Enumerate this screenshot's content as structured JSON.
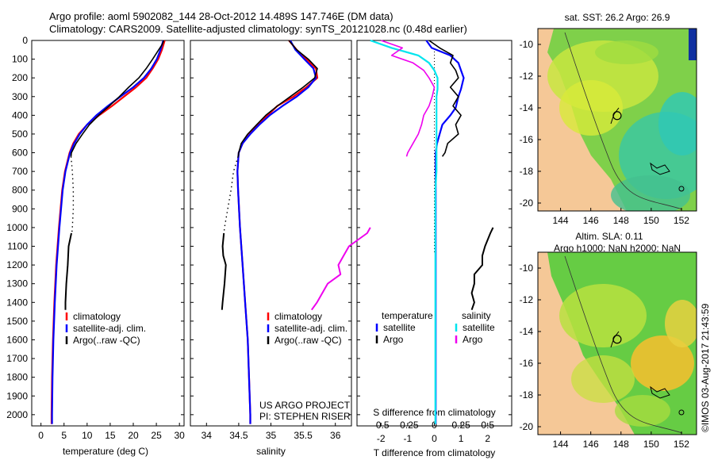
{
  "header": {
    "line1": "Argo profile: aoml 5902082_144 28-Oct-2012 14.489S 147.746E (DM data)",
    "line2": "Climatology: CARS2009. Satellite-adjusted climatology: synTS_20121028.nc (0.48d earlier)"
  },
  "colors": {
    "climatology": "#ff0000",
    "satellite": "#0000ff",
    "argo": "#000000",
    "s_satellite": "#00e5ee",
    "s_argo": "#ee00ee",
    "land": "#f5c897",
    "frame": "#000000"
  },
  "depth_ticks": [
    "0",
    "100",
    "200",
    "300",
    "400",
    "500",
    "600",
    "700",
    "800",
    "900",
    "1000",
    "1100",
    "1200",
    "1300",
    "1400",
    "1500",
    "1600",
    "1700",
    "1800",
    "1900",
    "2000"
  ],
  "chart_data": [
    {
      "type": "line",
      "name": "temperature-profile",
      "xlabel": "temperature (deg C)",
      "ylabel": "",
      "xlim": [
        -2,
        31
      ],
      "ylim": [
        2060,
        0
      ],
      "xticks": [
        "0",
        "5",
        "10",
        "15",
        "20",
        "25",
        "30"
      ],
      "legend": [
        "climatology",
        "satellite-adj. clim.",
        "Argo(..raw -QC)"
      ],
      "series": [
        {
          "name": "climatology",
          "depth": [
            0,
            50,
            100,
            150,
            200,
            250,
            300,
            350,
            400,
            450,
            500,
            550,
            600,
            700,
            800,
            1000,
            1200,
            1400,
            1600,
            1800,
            2000,
            2050
          ],
          "values": [
            26.8,
            26.2,
            25.4,
            24.2,
            22.8,
            20.6,
            18.0,
            15.4,
            12.6,
            10.0,
            8.2,
            7.0,
            6.2,
            5.2,
            4.6,
            3.9,
            3.3,
            2.9,
            2.6,
            2.4,
            2.3,
            2.3
          ]
        },
        {
          "name": "satellite-adj. clim.",
          "depth": [
            0,
            50,
            100,
            150,
            200,
            250,
            300,
            350,
            400,
            450,
            500,
            550,
            600,
            700,
            800,
            1000,
            1200,
            1400,
            1600,
            1800,
            2000,
            2050
          ],
          "values": [
            26.5,
            25.9,
            25.1,
            23.9,
            22.3,
            20.0,
            17.2,
            14.5,
            12.0,
            10.0,
            8.4,
            7.2,
            6.3,
            5.3,
            4.7,
            4.0,
            3.4,
            3.0,
            2.7,
            2.5,
            2.4,
            2.4
          ]
        },
        {
          "name": "Argo(..raw -QC)",
          "depth": [
            0,
            20,
            50,
            100,
            150,
            200,
            250,
            300,
            350,
            400,
            450,
            500,
            550,
            600,
            620
          ],
          "values": [
            26.6,
            26.3,
            25.5,
            24.2,
            22.8,
            21.2,
            19.0,
            17.0,
            14.8,
            12.5,
            10.5,
            9.0,
            7.6,
            6.6,
            6.5
          ]
        },
        {
          "name": "Argo-dotted",
          "depth": [
            620,
            700,
            800,
            900,
            1000,
            1030
          ],
          "values": [
            6.5,
            6.8,
            7.0,
            7.0,
            6.8,
            6.7
          ]
        },
        {
          "name": "Argo-deep",
          "depth": [
            1030,
            1100,
            1200,
            1300,
            1400,
            1440
          ],
          "values": [
            6.6,
            6.0,
            5.8,
            5.5,
            5.3,
            5.3
          ]
        }
      ]
    },
    {
      "type": "line",
      "name": "salinity-profile",
      "xlabel": "salinity",
      "xlim": [
        33.75,
        36.25
      ],
      "ylim": [
        2060,
        0
      ],
      "xticks": [
        "34",
        "34.5",
        "35",
        "35.5",
        "36"
      ],
      "legend": [
        "climatology",
        "satellite-adj. clim.",
        "Argo(..raw -QC)"
      ],
      "credit": [
        "US ARGO PROJECT",
        "PI: STEPHEN RISER"
      ],
      "series": [
        {
          "name": "climatology",
          "depth": [
            0,
            50,
            100,
            150,
            200,
            250,
            300,
            350,
            400,
            450,
            500,
            550,
            600,
            700,
            800,
            1000,
            1200,
            1400,
            1600,
            1800,
            2000,
            2050
          ],
          "values": [
            35.28,
            35.4,
            35.55,
            35.7,
            35.72,
            35.55,
            35.35,
            35.1,
            34.95,
            34.8,
            34.67,
            34.56,
            34.5,
            34.48,
            34.49,
            34.52,
            34.56,
            34.6,
            34.64,
            34.66,
            34.68,
            34.68
          ]
        },
        {
          "name": "satellite-adj. clim.",
          "depth": [
            0,
            50,
            100,
            150,
            200,
            250,
            300,
            350,
            400,
            450,
            500,
            550,
            600,
            700,
            800,
            1000,
            1200,
            1400,
            1600,
            1800,
            2000,
            2050
          ],
          "values": [
            35.3,
            35.38,
            35.52,
            35.66,
            35.7,
            35.58,
            35.4,
            35.18,
            34.98,
            34.82,
            34.68,
            34.56,
            34.5,
            34.48,
            34.49,
            34.52,
            34.56,
            34.6,
            34.64,
            34.66,
            34.68,
            34.68
          ]
        },
        {
          "name": "Argo(..raw -QC)",
          "depth": [
            0,
            50,
            100,
            150,
            200,
            250,
            300,
            350,
            400,
            450,
            500,
            550,
            600,
            620
          ],
          "values": [
            35.28,
            35.4,
            35.58,
            35.72,
            35.68,
            35.5,
            35.3,
            35.1,
            34.92,
            34.78,
            34.64,
            34.54,
            34.5,
            34.49
          ]
        },
        {
          "name": "Argo-dotted",
          "depth": [
            620,
            700,
            800,
            900,
            1000,
            1030
          ],
          "values": [
            34.49,
            34.42,
            34.38,
            34.33,
            34.28,
            34.27
          ]
        },
        {
          "name": "Argo-deep",
          "depth": [
            1030,
            1100,
            1150,
            1200,
            1300,
            1400,
            1440
          ],
          "values": [
            34.27,
            34.25,
            34.26,
            34.3,
            34.28,
            34.25,
            34.24
          ]
        }
      ]
    },
    {
      "type": "line",
      "name": "difference-profile",
      "xlabel": "T difference from climatology",
      "xlabel2": "S difference from climatology",
      "xlim": [
        -2.9,
        2.9
      ],
      "ylim": [
        2060,
        0
      ],
      "xticks_T": [
        "-2",
        "-1",
        "0",
        "1",
        "2"
      ],
      "xticks_S": [
        "-0.5",
        "-0.25",
        "0",
        "0.25",
        "0.5"
      ],
      "legend_T_title": "temperature",
      "legend_S_title": "salinity",
      "legend_T": [
        "satellite",
        "Argo"
      ],
      "legend_S": [
        "satellite",
        "Argo"
      ],
      "series": [
        {
          "name": "T satellite",
          "depth": [
            0,
            40,
            80,
            120,
            160,
            200,
            260,
            300,
            360,
            400,
            450,
            500,
            550,
            600,
            700,
            800,
            1000,
            1200,
            1400,
            1600,
            1800,
            2000,
            2050
          ],
          "values": [
            -0.3,
            -0.1,
            0.6,
            0.9,
            1.0,
            1.1,
            1.0,
            0.9,
            0.8,
            0.6,
            0.3,
            0.2,
            0.1,
            0.05,
            0.05,
            0.05,
            0.05,
            0.05,
            0.05,
            0.05,
            0.05,
            0.05,
            0.05
          ]
        },
        {
          "name": "T Argo",
          "depth": [
            0,
            40,
            80,
            120,
            160,
            200,
            250,
            300,
            350,
            400,
            450,
            500,
            550,
            600,
            620
          ],
          "values": [
            -0.2,
            0.2,
            0.7,
            0.6,
            0.8,
            0.9,
            0.6,
            0.9,
            0.7,
            1.0,
            0.8,
            0.9,
            0.5,
            0.4,
            0.3
          ]
        },
        {
          "name": "T Argo-deep",
          "depth": [
            1000,
            1030,
            1100,
            1150,
            1200,
            1250,
            1300,
            1350,
            1400,
            1440
          ],
          "values": [
            2.2,
            2.1,
            1.9,
            1.8,
            1.8,
            1.5,
            1.5,
            1.4,
            1.5,
            1.4
          ]
        },
        {
          "name": "S satellite",
          "depth": [
            0,
            40,
            80,
            120,
            160,
            200,
            260,
            300,
            400,
            500,
            600,
            700,
            800,
            1000,
            1200,
            1400,
            1600,
            1800,
            2000,
            2050
          ],
          "values": [
            -0.6,
            -0.4,
            -0.15,
            -0.05,
            0.0,
            0.03,
            0.03,
            0.02,
            0.02,
            0.02,
            0.02,
            0.02,
            0.01,
            0.01,
            0.01,
            0.01,
            0.01,
            0.01,
            0.01,
            0.01
          ]
        },
        {
          "name": "S Argo",
          "depth": [
            0,
            40,
            80,
            120,
            160,
            200,
            250,
            300,
            350,
            400,
            450,
            500,
            550,
            600,
            620
          ],
          "values": [
            -0.5,
            -0.3,
            -0.4,
            -0.2,
            -0.1,
            -0.05,
            0.0,
            -0.02,
            -0.05,
            -0.1,
            -0.12,
            -0.15,
            -0.2,
            -0.25,
            -0.26
          ]
        },
        {
          "name": "S Argo-deep",
          "depth": [
            1000,
            1030,
            1100,
            1150,
            1200,
            1250,
            1300,
            1350,
            1400,
            1440
          ],
          "values": [
            -0.6,
            -0.63,
            -0.8,
            -0.85,
            -0.9,
            -0.88,
            -1.0,
            -1.05,
            -1.1,
            -1.15
          ]
        }
      ]
    },
    {
      "type": "heatmap",
      "name": "sst-map",
      "title": "sat. SST: 26.2  Argo: 26.9",
      "xticks": [
        "144",
        "146",
        "148",
        "150",
        "152"
      ],
      "yticks": [
        "-10",
        "-12",
        "-14",
        "-16",
        "-18",
        "-20"
      ],
      "xlim": [
        142.5,
        153
      ],
      "ylim": [
        -20.5,
        -9
      ],
      "argo_position": {
        "lon": 147.746,
        "lat": -14.489
      }
    },
    {
      "type": "heatmap",
      "name": "sla-map",
      "title_line1": "Altim. SLA: 0.11",
      "title_line2": "Argo h1000: NaN h2000: NaN",
      "xticks": [
        "144",
        "146",
        "148",
        "150",
        "152"
      ],
      "yticks": [
        "-10",
        "-12",
        "-14",
        "-16",
        "-18",
        "-20"
      ],
      "xlim": [
        142.5,
        153
      ],
      "ylim": [
        -20.5,
        -9
      ],
      "argo_position": {
        "lon": 147.746,
        "lat": -14.489
      }
    }
  ],
  "footer": {
    "timestamp": "©IMOS 03-Aug-2017 21:43:59"
  }
}
